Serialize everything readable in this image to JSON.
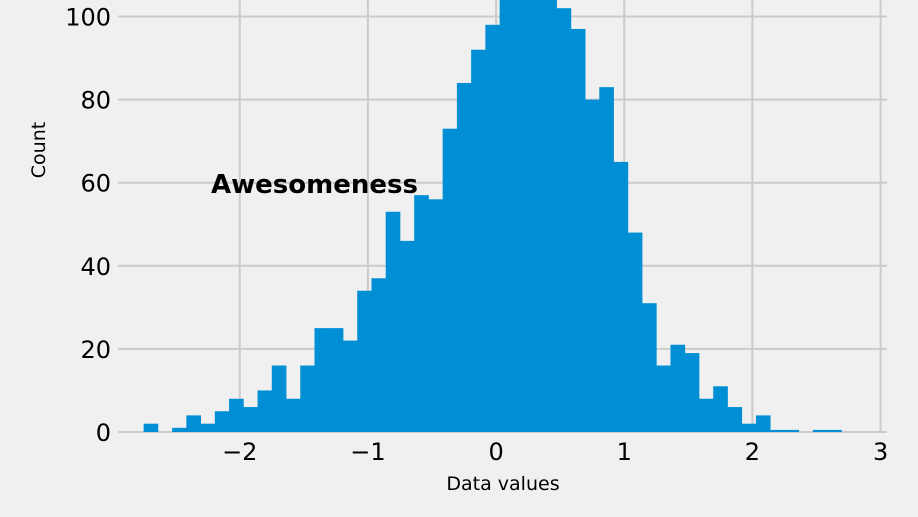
{
  "chart_data": {
    "type": "bar",
    "title": "",
    "xlabel": "Data values",
    "ylabel": "Count",
    "annotation": "Awesomeness",
    "bar_color": "#008fd5",
    "background_color": "#f0f0f0",
    "grid_color": "#cbcbcb",
    "grid": true,
    "xlim": [
      -2.95,
      3.05
    ],
    "ylim": [
      0,
      105
    ],
    "x_ticks": [
      -2,
      -1,
      0,
      1,
      2,
      3
    ],
    "x_tick_labels": [
      "−2",
      "−1",
      "0",
      "1",
      "2",
      "3"
    ],
    "y_ticks": [
      0,
      20,
      40,
      60,
      80,
      100
    ],
    "y_tick_labels": [
      "0",
      "20",
      "40",
      "60",
      "80",
      "100"
    ],
    "bin_start": -2.75,
    "bin_width": 0.1111,
    "values": [
      2,
      0,
      1,
      4,
      2,
      5,
      8,
      6,
      10,
      16,
      8,
      16,
      25,
      25,
      22,
      34,
      37,
      53,
      46,
      57,
      56,
      73,
      84,
      92,
      98,
      110,
      110,
      110,
      110,
      102,
      97,
      80,
      83,
      65,
      48,
      31,
      16,
      21,
      19,
      8,
      11,
      6,
      2,
      4,
      0.5,
      0.5,
      0,
      0.5,
      0.5,
      0
    ]
  }
}
